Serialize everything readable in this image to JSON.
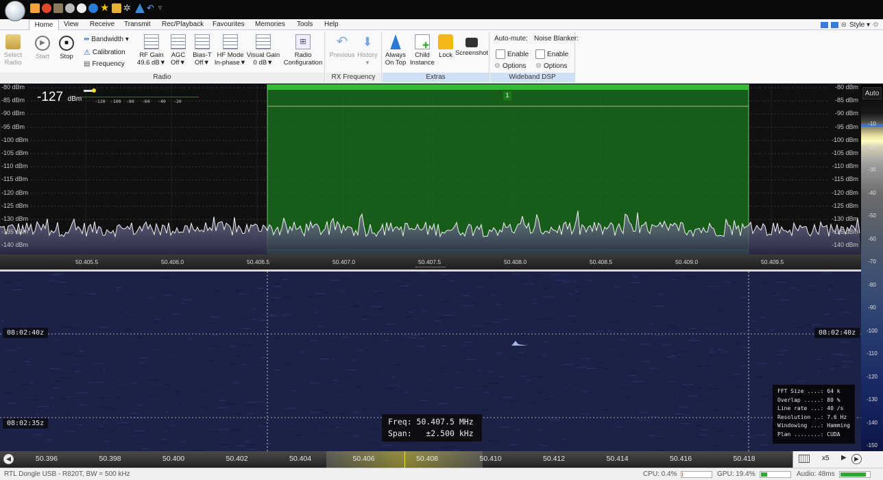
{
  "window": {
    "style_label": "Style ▾"
  },
  "tabs": [
    "Home",
    "View",
    "Receive",
    "Transmit",
    "Rec/Playback",
    "Favourites",
    "Memories",
    "Tools",
    "Help"
  ],
  "ribbon": {
    "radio_group": {
      "label": "Radio",
      "select_radio": "Select Radio",
      "start": "Start",
      "stop": "Stop",
      "bandwidth": "Bandwidth ▾",
      "calibration": "Calibration",
      "frequency": "Frequency",
      "rf_gain": {
        "label": "RF Gain",
        "value": "49.6 dB▼"
      },
      "agc": {
        "label": "AGC",
        "value": "Off▼"
      },
      "bias_t": {
        "label": "Bias-T",
        "value": "Off▼"
      },
      "hf_mode": {
        "label": "HF Mode",
        "value": "In-phase▼"
      },
      "visual_gain": {
        "label": "Visual Gain",
        "value": "0 dB▼"
      },
      "radio_configuration": "Radio Configuration"
    },
    "rx_group": {
      "label": "RX Frequency",
      "previous": "Previous",
      "history": "History"
    },
    "extras_group": {
      "label": "Extras",
      "always_on_top": "Always On Top",
      "child_instance": "Child Instance",
      "lock": "Lock",
      "screenshot": "Screenshot"
    },
    "dsp_group": {
      "label": "Wideband DSP",
      "auto_mute": "Auto-mute:",
      "noise_blanker": "Noise Blanker:",
      "enable1": "Enable",
      "enable2": "Enable",
      "options1": "Options",
      "options2": "Options"
    }
  },
  "spectrum": {
    "level_value": "-127",
    "level_unit": "dBm",
    "level_ticks": [
      "-120",
      "-100",
      "-80",
      "-60",
      "-40",
      "-20"
    ],
    "marker_label": "1",
    "y_labels": [
      "-80 dBm",
      "-85 dBm",
      "-90 dBm",
      "-95 dBm",
      "-100 dBm",
      "-105 dBm",
      "-110 dBm",
      "-115 dBm",
      "-120 dBm",
      "-125 dBm",
      "-130 dBm",
      "-135 dBm",
      "-140 dBm"
    ],
    "x_labels": [
      "50.405.5",
      "50.406.0",
      "50.406.5",
      "50.407.0",
      "50.407.5",
      "50.408.0",
      "50.408.5",
      "50.409.0",
      "50.409.5"
    ]
  },
  "scale": {
    "auto": "Auto",
    "labels": [
      "-10",
      "-20",
      "-30",
      "-40",
      "-50",
      "-60",
      "-70",
      "-80",
      "-90",
      "-100",
      "-110",
      "-120",
      "-130",
      "-140",
      "-150"
    ]
  },
  "waterfall": {
    "time1": "08:02:40z",
    "time2": "08:02:35z",
    "freq_readout": "Freq: 50.407.5 MHz",
    "span_readout": "Span:   ±2.500 kHz",
    "fft_info": [
      "FFT Size ....: 64 k",
      "Overlap .....: 80 %",
      "Line rate ...: 40 /s",
      "Resolution ..: 7.6 Hz",
      "Windowing ...: Hamming",
      "Plan ........: CUDA"
    ]
  },
  "bottom_axis": {
    "labels": [
      "50.396",
      "50.398",
      "50.400",
      "50.402",
      "50.404",
      "50.406",
      "50.408",
      "50.410",
      "50.412",
      "50.414",
      "50.416",
      "50.418"
    ],
    "zoom": "x5"
  },
  "status": {
    "device": "RTL Dongle USB - R820T, BW = 500 kHz",
    "cpu": "CPU: 0.4%",
    "gpu": "GPU: 19.4%",
    "audio": "Audio: 48ms",
    "cpu_load": 0.004,
    "gpu_load": 0.194,
    "audio_level": 0.85
  }
}
